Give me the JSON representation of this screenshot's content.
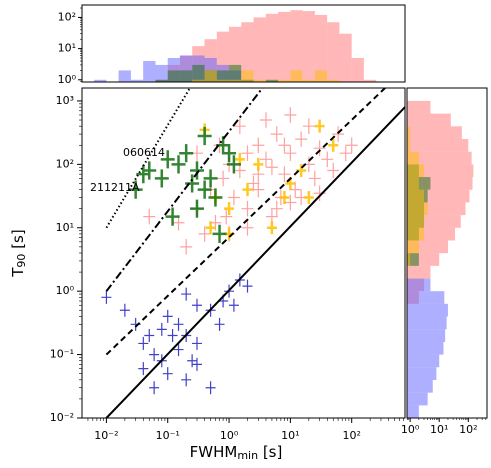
{
  "chart_data": [
    {
      "type": "scatter",
      "xlabel": [
        "FWHM",
        "min",
        " [s]"
      ],
      "ylabel": [
        "T",
        "90",
        " [s]"
      ],
      "log_x": true,
      "log_y": true,
      "xlim": [
        0.004,
        740
      ],
      "ylim": [
        0.01,
        1600
      ],
      "xticks": [
        {
          "value": 0.01,
          "label": "10⁻²"
        },
        {
          "value": 0.1,
          "label": "10⁻¹"
        },
        {
          "value": 1,
          "label": "10⁰"
        },
        {
          "value": 10,
          "label": "10¹"
        },
        {
          "value": 100,
          "label": "10²"
        }
      ],
      "yticks": [
        {
          "value": 0.01,
          "label": "10⁻²"
        },
        {
          "value": 0.1,
          "label": "10⁻¹"
        },
        {
          "value": 1,
          "label": "10⁰"
        },
        {
          "value": 10,
          "label": "10¹"
        },
        {
          "value": 100,
          "label": "10²"
        },
        {
          "value": 1000,
          "label": "10³"
        }
      ],
      "annotations": [
        "060614",
        "211211A"
      ],
      "lines": [
        {
          "style": "solid",
          "x": [
            0.01,
            740
          ],
          "y": [
            0.01,
            800
          ]
        },
        {
          "style": "dashed",
          "x": [
            0.01,
            350
          ],
          "y": [
            0.1,
            1600
          ]
        },
        {
          "style": "dashdot",
          "x": [
            0.01,
            3.5
          ],
          "y": [
            1,
            1600
          ]
        },
        {
          "style": "dotted",
          "x": [
            0.01,
            0.23
          ],
          "y": [
            10,
            1600
          ]
        }
      ],
      "series": [
        {
          "color": "#ff3030",
          "x": [
            0.3,
            0.5,
            0.8,
            1,
            1.5,
            2,
            2.5,
            3,
            4,
            5,
            6,
            8,
            10,
            12,
            15,
            20,
            25,
            30,
            40,
            50,
            60,
            80,
            1.2,
            2,
            3,
            5,
            7,
            10,
            0.6,
            1,
            0.4,
            0.2,
            0.15,
            0.7,
            0.3,
            1.5,
            4,
            10,
            20,
            2,
            6,
            15,
            0.9,
            3,
            8,
            0.05,
            30,
            100
          ],
          "values": [
            20,
            40,
            60,
            100,
            80,
            150,
            50,
            200,
            120,
            90,
            300,
            70,
            150,
            40,
            250,
            100,
            60,
            180,
            120,
            80,
            300,
            150,
            30,
            20,
            40,
            15,
            30,
            25,
            12,
            8,
            8,
            5,
            12,
            200,
            150,
            400,
            500,
            600,
            400,
            10,
            20,
            30,
            15,
            70,
            200,
            15,
            35,
            200
          ]
        },
        {
          "color": "#2020c0",
          "x": [
            0.01,
            0.02,
            0.03,
            0.05,
            0.04,
            0.06,
            0.08,
            0.1,
            0.15,
            0.2,
            0.3,
            0.5,
            0.8,
            1,
            1.5,
            2,
            0.3,
            0.2,
            0.1,
            0.2,
            0.5,
            0.3,
            0.06,
            0.04,
            0.7,
            1.2,
            0.15,
            0.08,
            0.25,
            0.12
          ],
          "values": [
            0.8,
            0.5,
            0.3,
            0.2,
            0.15,
            0.1,
            0.25,
            0.4,
            0.3,
            0.2,
            0.15,
            0.5,
            0.7,
            1,
            1.5,
            1.2,
            0.6,
            0.9,
            0.05,
            0.04,
            0.03,
            0.07,
            0.03,
            0.06,
            0.3,
            0.6,
            0.12,
            0.08,
            0.08,
            0.2
          ]
        },
        {
          "color": "#ffc000",
          "x": [
            0.4,
            0.6,
            1,
            1.5,
            2,
            3,
            5,
            8,
            10,
            20,
            30,
            50,
            0.5,
            1,
            15
          ],
          "values": [
            350,
            30,
            20,
            120,
            40,
            100,
            10,
            30,
            50,
            30,
            400,
            200,
            10,
            8,
            80
          ]
        },
        {
          "color": "#107010",
          "x": [
            0.03,
            0.05,
            0.08,
            0.1,
            0.15,
            0.2,
            0.3,
            0.4,
            0.5,
            0.6,
            0.8,
            1,
            0.4,
            0.25,
            0.12,
            0.7,
            0.04,
            1.2,
            0.3
          ],
          "values": [
            40,
            80,
            60,
            120,
            100,
            150,
            80,
            40,
            60,
            30,
            200,
            150,
            280,
            50,
            15,
            8,
            70,
            100,
            20
          ]
        }
      ]
    },
    {
      "type": "histogram",
      "orientation": "vertical",
      "log_x": true,
      "log_y": true,
      "xlim": [
        0.004,
        740
      ],
      "ylim": [
        0.85,
        250
      ],
      "yticks": [
        {
          "value": 1,
          "label": "10⁰"
        },
        {
          "value": 10,
          "label": "10¹"
        },
        {
          "value": 100,
          "label": "10²"
        }
      ],
      "bins": [
        0.00631,
        0.01,
        0.0158,
        0.0251,
        0.0398,
        0.0631,
        0.1,
        0.158,
        0.251,
        0.398,
        0.631,
        1,
        1.58,
        2.51,
        3.98,
        6.31,
        10,
        15.8,
        25.1,
        39.8,
        63.1,
        100,
        158,
        251
      ],
      "series": [
        {
          "color": "#ff7070",
          "values": [
            0,
            0,
            0,
            0,
            0,
            1,
            3,
            6,
            12,
            20,
            35,
            50,
            70,
            100,
            130,
            150,
            170,
            160,
            120,
            70,
            30,
            5,
            1
          ]
        },
        {
          "color": "#6060ff",
          "values": [
            1,
            0,
            2,
            1,
            4,
            3,
            5,
            6,
            6,
            5,
            3,
            2,
            1,
            0,
            0,
            0,
            0,
            0,
            0,
            0,
            0,
            0,
            0
          ]
        },
        {
          "color": "#107010",
          "values": [
            0,
            0,
            0,
            0,
            0,
            1,
            2,
            2,
            3,
            2,
            2,
            3,
            1,
            0,
            1,
            0,
            0,
            0,
            0,
            0,
            0,
            0,
            0
          ]
        },
        {
          "color": "#ffc000",
          "values": [
            0,
            0,
            0,
            0,
            0,
            0,
            0,
            0,
            1,
            2,
            1,
            1,
            2,
            1,
            0,
            1,
            2,
            1,
            2,
            1,
            0,
            0,
            0
          ]
        }
      ]
    },
    {
      "type": "histogram",
      "orientation": "horizontal",
      "log_x": true,
      "log_y": true,
      "xlim": [
        0.78,
        440
      ],
      "ylim": [
        0.01,
        1600
      ],
      "xticks": [
        {
          "value": 1,
          "label": "10⁰"
        },
        {
          "value": 10,
          "label": "10¹"
        },
        {
          "value": 100,
          "label": "10²"
        }
      ],
      "bins": [
        0.01,
        0.0158,
        0.0251,
        0.0398,
        0.0631,
        0.1,
        0.158,
        0.251,
        0.398,
        0.631,
        1,
        1.58,
        2.51,
        3.98,
        6.31,
        10,
        15.8,
        25.1,
        39.8,
        63.1,
        100,
        158,
        251,
        398,
        631,
        1000
      ],
      "series": [
        {
          "color": "#ff7070",
          "values": [
            0,
            0,
            0,
            0,
            0,
            0,
            0,
            0,
            0,
            2,
            3,
            5,
            10,
            20,
            35,
            55,
            80,
            110,
            140,
            150,
            130,
            100,
            60,
            25,
            5
          ]
        },
        {
          "color": "#6060ff",
          "values": [
            2,
            4,
            6,
            8,
            10,
            14,
            16,
            18,
            20,
            15,
            5,
            0,
            0,
            0,
            0,
            0,
            0,
            0,
            0,
            0,
            0,
            0,
            0,
            0,
            0
          ]
        },
        {
          "color": "#107010",
          "values": [
            0,
            0,
            0,
            0,
            0,
            0,
            0,
            0,
            0,
            0,
            0,
            0,
            2,
            0,
            2,
            3,
            3,
            4,
            5,
            2,
            0,
            0,
            0,
            0,
            0
          ]
        },
        {
          "color": "#ffc000",
          "values": [
            0,
            0,
            0,
            0,
            0,
            0,
            0,
            0,
            0,
            0,
            0,
            0,
            1,
            2,
            3,
            3,
            4,
            3,
            2,
            3,
            2,
            1,
            1,
            0,
            0
          ]
        }
      ]
    }
  ]
}
